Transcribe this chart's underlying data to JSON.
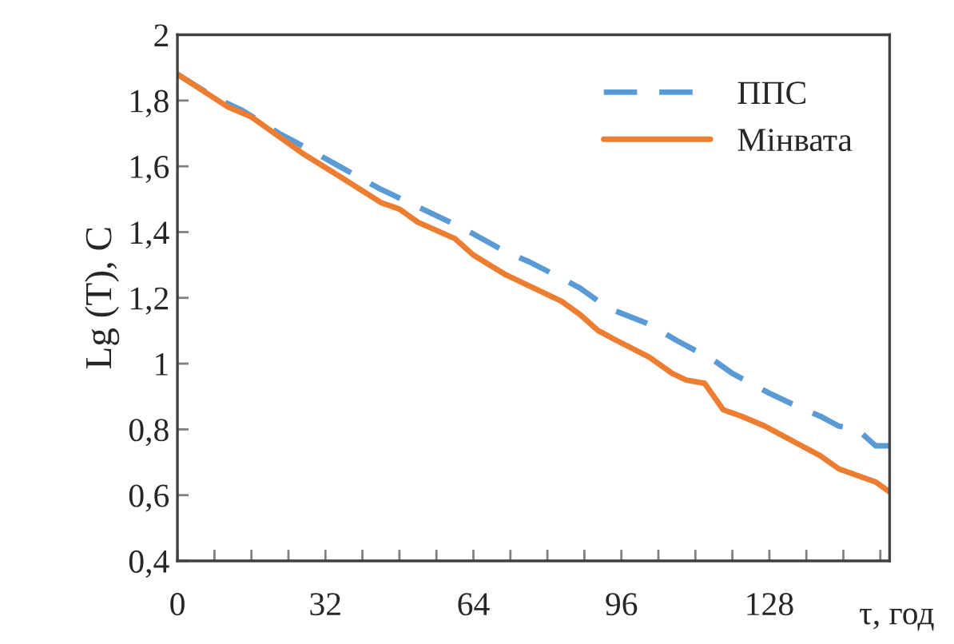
{
  "chart_data": {
    "type": "line",
    "xlabel": "τ, год",
    "ylabel": "Lg (T), C",
    "xlim": [
      0,
      154
    ],
    "ylim": [
      0.4,
      2
    ],
    "xticks": [
      0,
      {
        "value": 8,
        "label": null
      },
      {
        "value": 16,
        "label": null
      },
      {
        "value": 24,
        "label": null
      },
      32,
      {
        "value": 40,
        "label": null
      },
      {
        "value": 48,
        "label": null
      },
      {
        "value": 56,
        "label": null
      },
      64,
      {
        "value": 72,
        "label": null
      },
      {
        "value": 80,
        "label": null
      },
      {
        "value": 88,
        "label": null
      },
      96,
      {
        "value": 104,
        "label": null
      },
      {
        "value": 112,
        "label": null
      },
      {
        "value": 120,
        "label": null
      },
      128,
      {
        "value": 136,
        "label": null
      },
      {
        "value": 144,
        "label": null
      },
      {
        "value": 152,
        "label": null
      }
    ],
    "yticks": [
      {
        "value": 0.4,
        "label": "0,4"
      },
      {
        "value": 0.6,
        "label": "0,6"
      },
      {
        "value": 0.8,
        "label": "0,8"
      },
      1,
      {
        "value": 1.2,
        "label": "1,2"
      },
      {
        "value": 1.4,
        "label": "1,4"
      },
      {
        "value": 1.6,
        "label": "1,6"
      },
      {
        "value": 1.8,
        "label": "1,8"
      },
      2
    ],
    "grid": false,
    "legend": "top right",
    "marker": "none",
    "series": [
      {
        "name": "ППС",
        "color": "#5b9bd5",
        "line_style": "dashed",
        "x": [
          0,
          8,
          14,
          22,
          26,
          35,
          44,
          53,
          62,
          71,
          76,
          83,
          87,
          93,
          102,
          108,
          112,
          115,
          120,
          128,
          134,
          139,
          143,
          147,
          151,
          154
        ],
        "values": [
          1.88,
          1.81,
          1.77,
          1.7,
          1.67,
          1.6,
          1.53,
          1.47,
          1.41,
          1.34,
          1.31,
          1.26,
          1.23,
          1.17,
          1.12,
          1.07,
          1.04,
          1.02,
          0.97,
          0.91,
          0.87,
          0.84,
          0.81,
          0.8,
          0.75,
          0.75
        ]
      },
      {
        "name": "Мінвата",
        "color": "#ed7d31",
        "line_style": "solid",
        "x": [
          0,
          11,
          16,
          23,
          27,
          35,
          44,
          48,
          52,
          60,
          64,
          71,
          77,
          83,
          87,
          91,
          95,
          102,
          107,
          110,
          114,
          118,
          122,
          127,
          131,
          135,
          139,
          143,
          147,
          151,
          154
        ],
        "values": [
          1.88,
          1.78,
          1.75,
          1.68,
          1.64,
          1.57,
          1.49,
          1.47,
          1.43,
          1.38,
          1.33,
          1.27,
          1.23,
          1.19,
          1.15,
          1.1,
          1.07,
          1.02,
          0.97,
          0.95,
          0.94,
          0.86,
          0.84,
          0.81,
          0.78,
          0.75,
          0.72,
          0.68,
          0.66,
          0.64,
          0.61
        ]
      }
    ]
  }
}
